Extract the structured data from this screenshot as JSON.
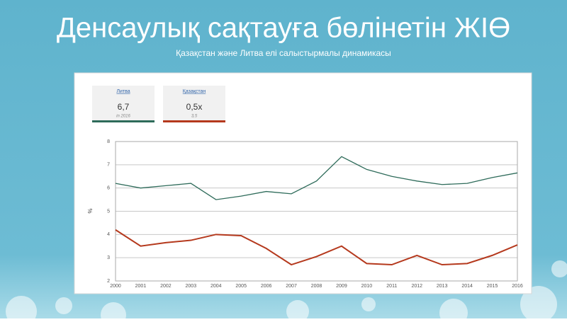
{
  "chart_data": {
    "type": "line",
    "title": "Денсаулық сақтауға бөлінетін ЖІӨ",
    "subtitle": "Қазақстан және Литва елі салыстырмалы динамикасы",
    "y_label": "%",
    "categories": [
      "2000",
      "2001",
      "2002",
      "2003",
      "2004",
      "2005",
      "2006",
      "2007",
      "2008",
      "2009",
      "2010",
      "2011",
      "2012",
      "2013",
      "2014",
      "2015",
      "2016"
    ],
    "series": [
      {
        "name": "Литва",
        "color": "#2e6b5a",
        "values": [
          6.2,
          6.0,
          6.1,
          6.2,
          5.5,
          5.65,
          5.85,
          5.75,
          6.3,
          7.35,
          6.8,
          6.5,
          6.3,
          6.15,
          6.2,
          6.45,
          6.65
        ],
        "card_value": "6,7",
        "card_note": "in 2016"
      },
      {
        "name": "Қазақстан",
        "color": "#b5391d",
        "values": [
          4.2,
          3.5,
          3.65,
          3.75,
          4.0,
          3.95,
          3.4,
          2.7,
          3.05,
          3.5,
          2.75,
          2.7,
          3.1,
          2.7,
          2.75,
          3.1,
          3.55
        ],
        "card_value": "0,5x",
        "card_note": "3,5"
      }
    ],
    "ylim": [
      2,
      8
    ],
    "yticks": [
      2,
      3,
      4,
      5,
      6,
      7,
      8
    ],
    "grid": true
  }
}
